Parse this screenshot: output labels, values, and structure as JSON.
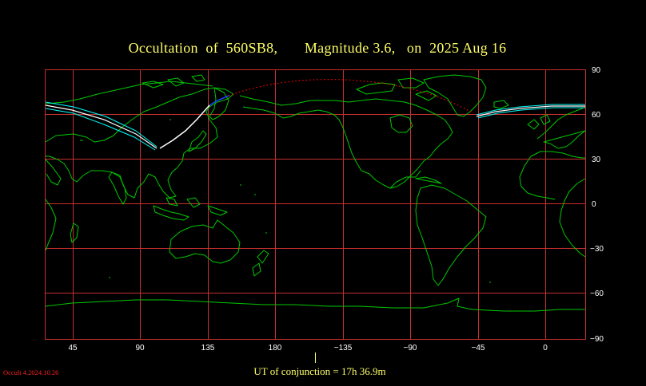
{
  "title": "Occultation  of  560SB8,       Magnitude 3.6,   on  2025 Aug 16",
  "footer": "UT of conjunction = 17h 36.9m",
  "version": "Occult 4.2024.10.26",
  "longitude_labels": [
    "45",
    "90",
    "135",
    "180",
    "−135",
    "−90",
    "−45",
    "0"
  ],
  "latitude_labels": [
    "90",
    "60",
    "30",
    "0",
    "−30",
    "−60",
    "−90"
  ],
  "colors": {
    "title": "#ffff66",
    "grid": "#c83030",
    "coastline": "#00c800",
    "path_daylight": "#ffffff",
    "path_limits": "#00ffff",
    "path_below_horizon": "#ff0000",
    "path_twilight": "#0000ff"
  }
}
